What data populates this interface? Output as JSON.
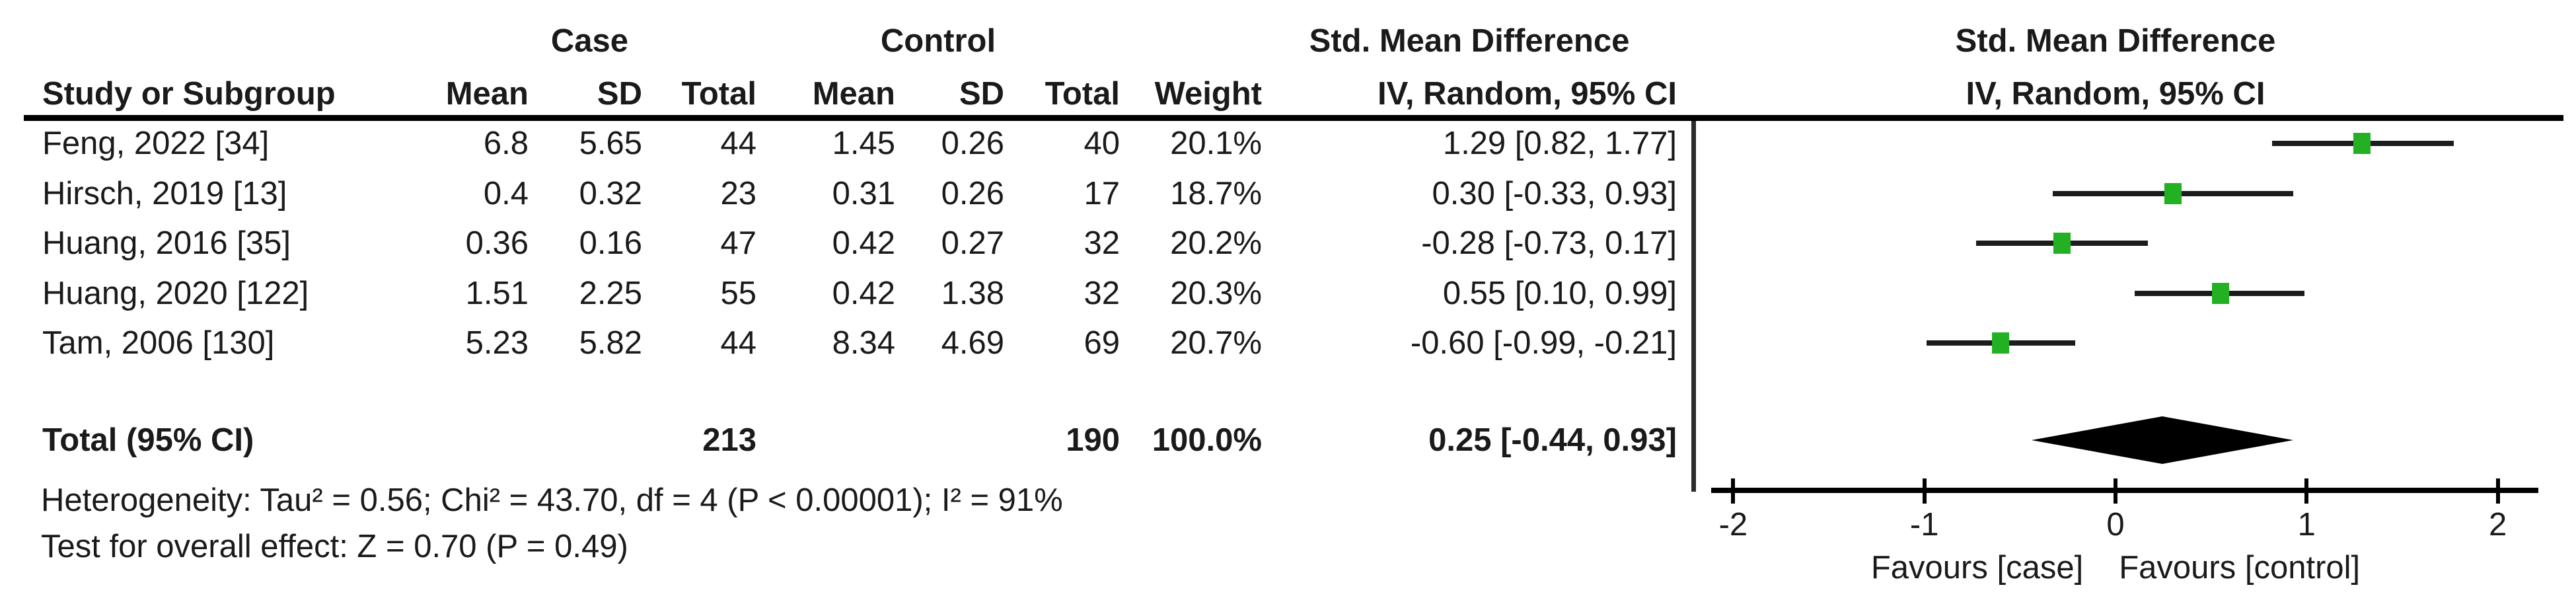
{
  "figure": {
    "background": "#ffffff",
    "text_color": "#1a1a1a",
    "marker_color": "#23b123",
    "ci_line_color": "#1c1c1c",
    "diamond_color": "#000000"
  },
  "table": {
    "groups": {
      "case": "Case",
      "control": "Control",
      "smd": "Std. Mean Difference"
    },
    "headers": {
      "study": "Study or Subgroup",
      "case_mean": "Mean",
      "case_sd": "SD",
      "case_total": "Total",
      "control_mean": "Mean",
      "control_sd": "SD",
      "control_total": "Total",
      "weight": "Weight",
      "ci": "IV, Random, 95% CI"
    }
  },
  "plot": {
    "header_line1": "Std. Mean Difference",
    "header_line2": "IV, Random, 95% CI"
  },
  "footnotes": {
    "heterogeneity": "Heterogeneity: Tau² = 0.56; Chi² = 43.70, df = 4 (P < 0.00001); I² = 91%",
    "overall_effect": "Test for overall effect: Z = 0.70 (P = 0.49)"
  },
  "chart_data": {
    "type": "forest",
    "effect_measure": "Std. Mean Difference",
    "method": "IV, Random, 95% CI",
    "studies": [
      {
        "label": "Feng, 2022 [34]",
        "case_mean": "6.8",
        "case_sd": "5.65",
        "case_total": "44",
        "control_mean": "1.45",
        "control_sd": "0.26",
        "control_total": "40",
        "weight": "20.1%",
        "ci_text": "1.29 [0.82, 1.77]",
        "est": 1.29,
        "lo": 0.82,
        "hi": 1.77
      },
      {
        "label": "Hirsch, 2019 [13]",
        "case_mean": "0.4",
        "case_sd": "0.32",
        "case_total": "23",
        "control_mean": "0.31",
        "control_sd": "0.26",
        "control_total": "17",
        "weight": "18.7%",
        "ci_text": "0.30 [-0.33, 0.93]",
        "est": 0.3,
        "lo": -0.33,
        "hi": 0.93
      },
      {
        "label": "Huang, 2016 [35]",
        "case_mean": "0.36",
        "case_sd": "0.16",
        "case_total": "47",
        "control_mean": "0.42",
        "control_sd": "0.27",
        "control_total": "32",
        "weight": "20.2%",
        "ci_text": "-0.28 [-0.73, 0.17]",
        "est": -0.28,
        "lo": -0.73,
        "hi": 0.17
      },
      {
        "label": "Huang, 2020 [122]",
        "case_mean": "1.51",
        "case_sd": "2.25",
        "case_total": "55",
        "control_mean": "0.42",
        "control_sd": "1.38",
        "control_total": "32",
        "weight": "20.3%",
        "ci_text": "0.55 [0.10, 0.99]",
        "est": 0.55,
        "lo": 0.1,
        "hi": 0.99
      },
      {
        "label": "Tam, 2006 [130]",
        "case_mean": "5.23",
        "case_sd": "5.82",
        "case_total": "44",
        "control_mean": "8.34",
        "control_sd": "4.69",
        "control_total": "69",
        "weight": "20.7%",
        "ci_text": "-0.60 [-0.99, -0.21]",
        "est": -0.6,
        "lo": -0.99,
        "hi": -0.21
      }
    ],
    "total": {
      "label": "Total (95% CI)",
      "case_total": "213",
      "control_total": "190",
      "weight": "100.0%",
      "ci_text": "0.25 [-0.44, 0.93]",
      "est": 0.25,
      "lo": -0.44,
      "hi": 0.93
    },
    "axis": {
      "min": -2,
      "max": 2,
      "ticks": [
        -2,
        -1,
        0,
        1,
        2
      ]
    },
    "favours_left": "Favours [case]",
    "favours_right": "Favours [control]"
  }
}
